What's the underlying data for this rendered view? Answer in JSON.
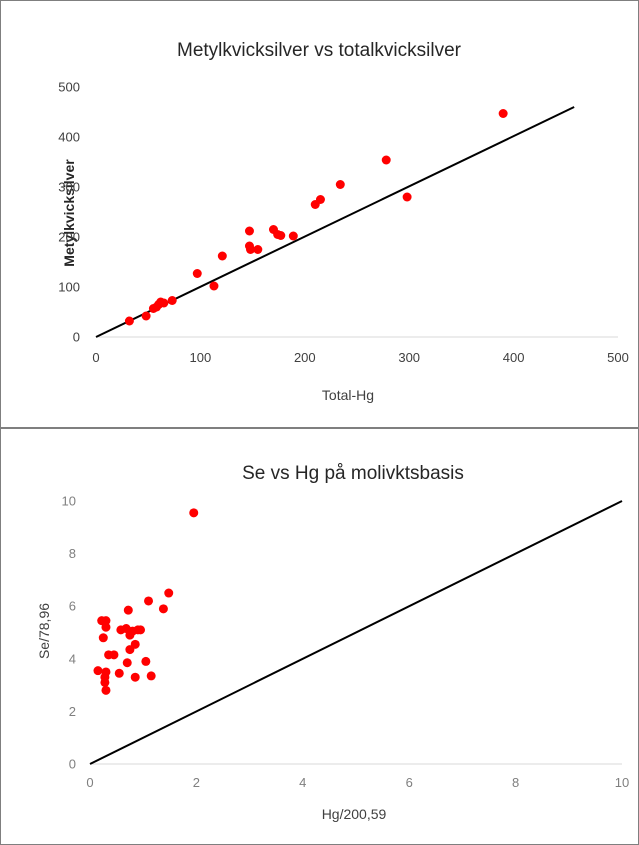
{
  "chart_data": [
    {
      "type": "scatter",
      "title": "Metylkvicksilver vs totalkvicksilver",
      "xlabel": "Total-Hg",
      "ylabel": "Metylkvicksilver",
      "xlim": [
        0,
        500
      ],
      "ylim": [
        0,
        500
      ],
      "xticks": [
        "0",
        "100",
        "200",
        "300",
        "400",
        "500"
      ],
      "yticks": [
        "0",
        "100",
        "200",
        "300",
        "400",
        "500"
      ],
      "grid": false,
      "marker_color": "#ff0000",
      "line_color": "#000000",
      "reference_line": {
        "x": [
          0,
          458
        ],
        "y": [
          0,
          460
        ]
      },
      "points": [
        [
          32,
          32
        ],
        [
          48,
          42
        ],
        [
          55,
          57
        ],
        [
          58,
          60
        ],
        [
          60,
          65
        ],
        [
          62,
          70
        ],
        [
          65,
          68
        ],
        [
          73,
          73
        ],
        [
          97,
          127
        ],
        [
          113,
          102
        ],
        [
          121,
          162
        ],
        [
          147,
          212
        ],
        [
          147,
          182
        ],
        [
          148,
          175
        ],
        [
          155,
          175
        ],
        [
          170,
          215
        ],
        [
          174,
          205
        ],
        [
          177,
          203
        ],
        [
          189,
          202
        ],
        [
          210,
          265
        ],
        [
          215,
          275
        ],
        [
          234,
          305
        ],
        [
          278,
          354
        ],
        [
          298,
          280
        ],
        [
          390,
          447
        ]
      ]
    },
    {
      "type": "scatter",
      "title": "Se vs Hg på molivktsbasis",
      "xlabel": "Hg/200,59",
      "ylabel": "Se/78,96",
      "xlim": [
        0,
        10
      ],
      "ylim": [
        0,
        10
      ],
      "xticks": [
        "0",
        "2",
        "4",
        "6",
        "8",
        "10"
      ],
      "yticks": [
        "0",
        "2",
        "4",
        "6",
        "8",
        "10"
      ],
      "grid": false,
      "marker_color": "#ff0000",
      "line_color": "#000000",
      "reference_line": {
        "x": [
          0,
          10
        ],
        "y": [
          0,
          10
        ]
      },
      "points": [
        [
          0.15,
          3.55
        ],
        [
          0.22,
          5.45
        ],
        [
          0.25,
          4.8
        ],
        [
          0.28,
          3.3
        ],
        [
          0.28,
          3.1
        ],
        [
          0.3,
          5.2
        ],
        [
          0.3,
          3.5
        ],
        [
          0.3,
          2.8
        ],
        [
          0.3,
          5.45
        ],
        [
          0.35,
          4.15
        ],
        [
          0.45,
          4.15
        ],
        [
          0.55,
          3.45
        ],
        [
          0.58,
          5.1
        ],
        [
          0.68,
          5.15
        ],
        [
          0.7,
          3.85
        ],
        [
          0.72,
          5.85
        ],
        [
          0.75,
          4.9
        ],
        [
          0.75,
          4.35
        ],
        [
          0.8,
          5.05
        ],
        [
          0.85,
          3.3
        ],
        [
          0.85,
          4.55
        ],
        [
          0.9,
          5.1
        ],
        [
          0.95,
          5.1
        ],
        [
          1.05,
          3.9
        ],
        [
          1.1,
          6.2
        ],
        [
          1.15,
          3.35
        ],
        [
          1.38,
          5.9
        ],
        [
          1.48,
          6.5
        ],
        [
          1.95,
          9.55
        ]
      ]
    }
  ]
}
